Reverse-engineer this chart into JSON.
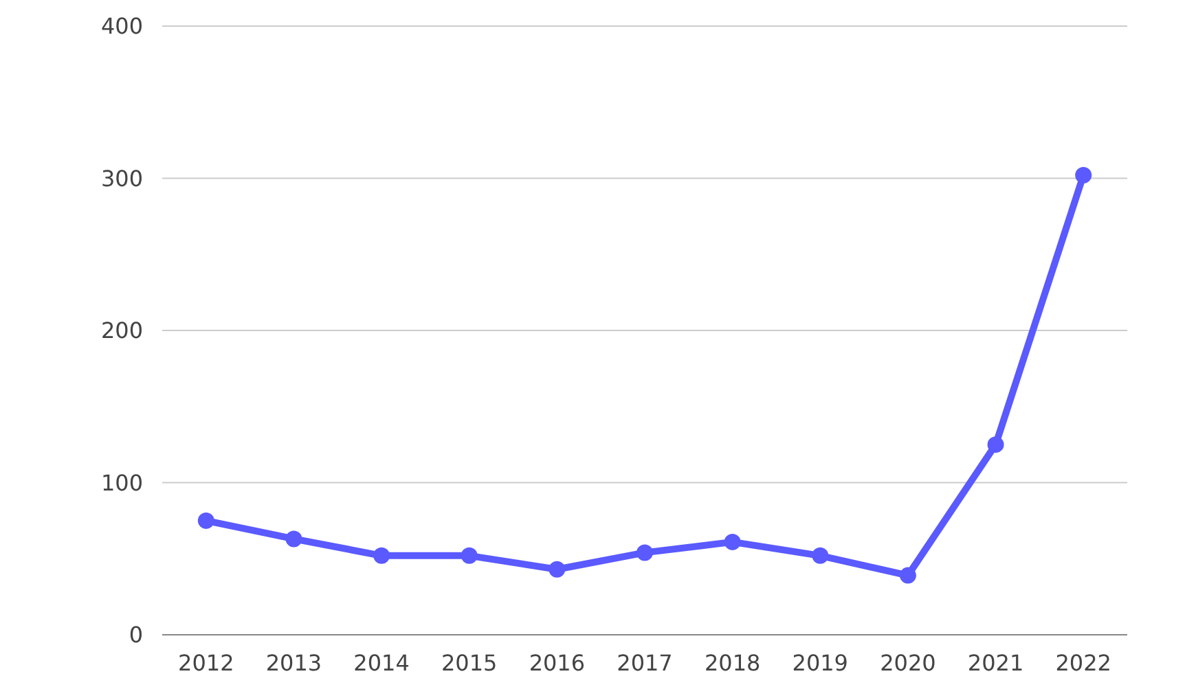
{
  "chart_data": {
    "type": "line",
    "categories": [
      "2012",
      "2013",
      "2014",
      "2015",
      "2016",
      "2017",
      "2018",
      "2019",
      "2020",
      "2021",
      "2022"
    ],
    "values": [
      75,
      63,
      52,
      52,
      43,
      54,
      61,
      52,
      39,
      125,
      302
    ],
    "color": "#5a5aff",
    "ylim": [
      0,
      400
    ],
    "yticks": [
      0,
      100,
      200,
      300,
      400
    ],
    "grid": "y",
    "marker": "circle",
    "line_style": "solid"
  }
}
